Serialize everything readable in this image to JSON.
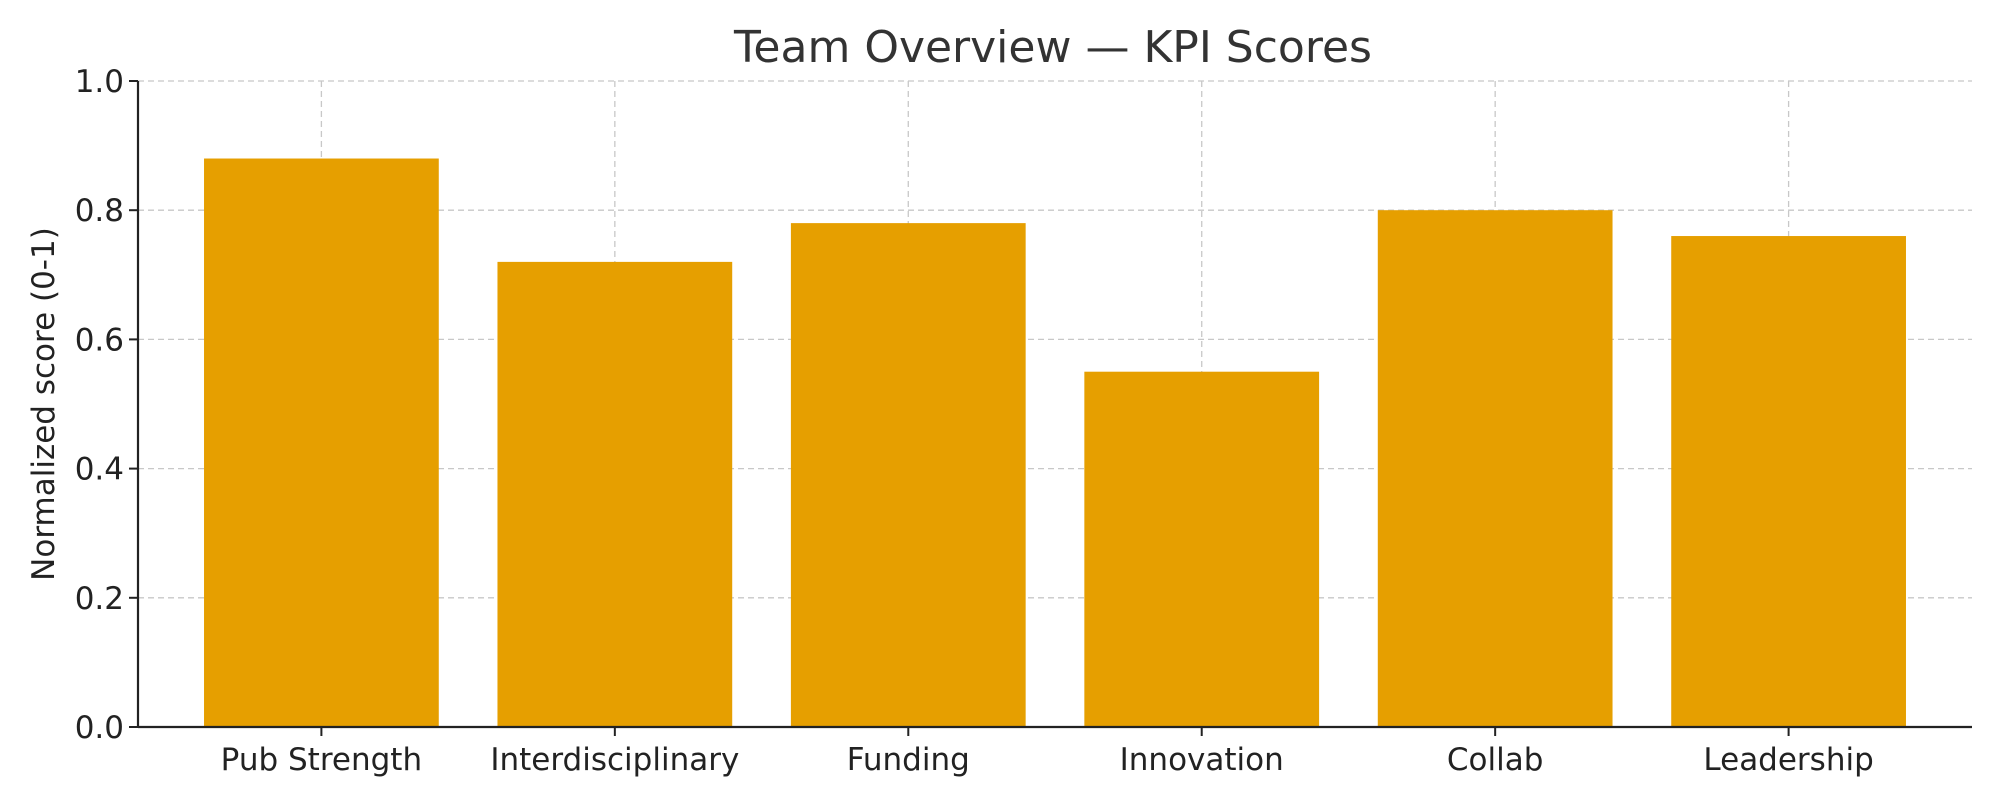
{
  "chart_data": {
    "type": "bar",
    "title": "Team Overview — KPI Scores",
    "xlabel": "",
    "ylabel": "Normalized score (0-1)",
    "categories": [
      "Pub Strength",
      "Interdisciplinary",
      "Funding",
      "Innovation",
      "Collab",
      "Leadership"
    ],
    "values": [
      0.88,
      0.72,
      0.78,
      0.55,
      0.8,
      0.76
    ],
    "ylim": [
      0,
      1
    ],
    "yticks": [
      0.0,
      0.2,
      0.4,
      0.6,
      0.8,
      1.0
    ],
    "ytick_labels": [
      "0.0",
      "0.2",
      "0.4",
      "0.6",
      "0.8",
      "1.0"
    ],
    "grid": true,
    "bar_color": "#E69F00"
  }
}
